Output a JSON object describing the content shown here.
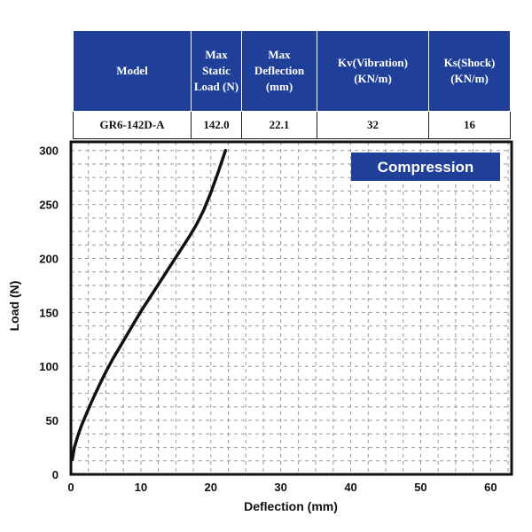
{
  "spec_table": {
    "headers": [
      "Model",
      "Max Static Load (N)",
      "Max Deflection (mm)",
      "Kv(Vibration) (KN/m)",
      "Ks(Shock) (KN/m)"
    ],
    "row": [
      "GR6-142D-A",
      "142.0",
      "22.1",
      "32",
      "16"
    ]
  },
  "chart_data": {
    "type": "line",
    "title": "",
    "badge": "Compression",
    "xlabel": "Deflection (mm)",
    "ylabel": "Load (N)",
    "xlim": [
      0,
      63
    ],
    "ylim": [
      0,
      308
    ],
    "xticks": [
      0,
      10,
      20,
      30,
      40,
      50,
      60
    ],
    "yticks": [
      0,
      50,
      100,
      150,
      200,
      250,
      300
    ],
    "grid": true,
    "series": [
      {
        "name": "",
        "color": "#111111",
        "x": [
          0.2,
          0.5,
          1,
          1.5,
          2,
          3,
          4,
          5,
          6,
          7,
          8,
          9,
          10,
          11,
          12,
          13,
          14,
          15,
          16,
          17,
          18,
          19,
          20,
          21,
          22.1
        ],
        "y": [
          14,
          25,
          36,
          45,
          53,
          68,
          82,
          95,
          107,
          118,
          129,
          140,
          151,
          161,
          171,
          181,
          191,
          201,
          211,
          221,
          232,
          245,
          261,
          279,
          300
        ]
      }
    ]
  }
}
